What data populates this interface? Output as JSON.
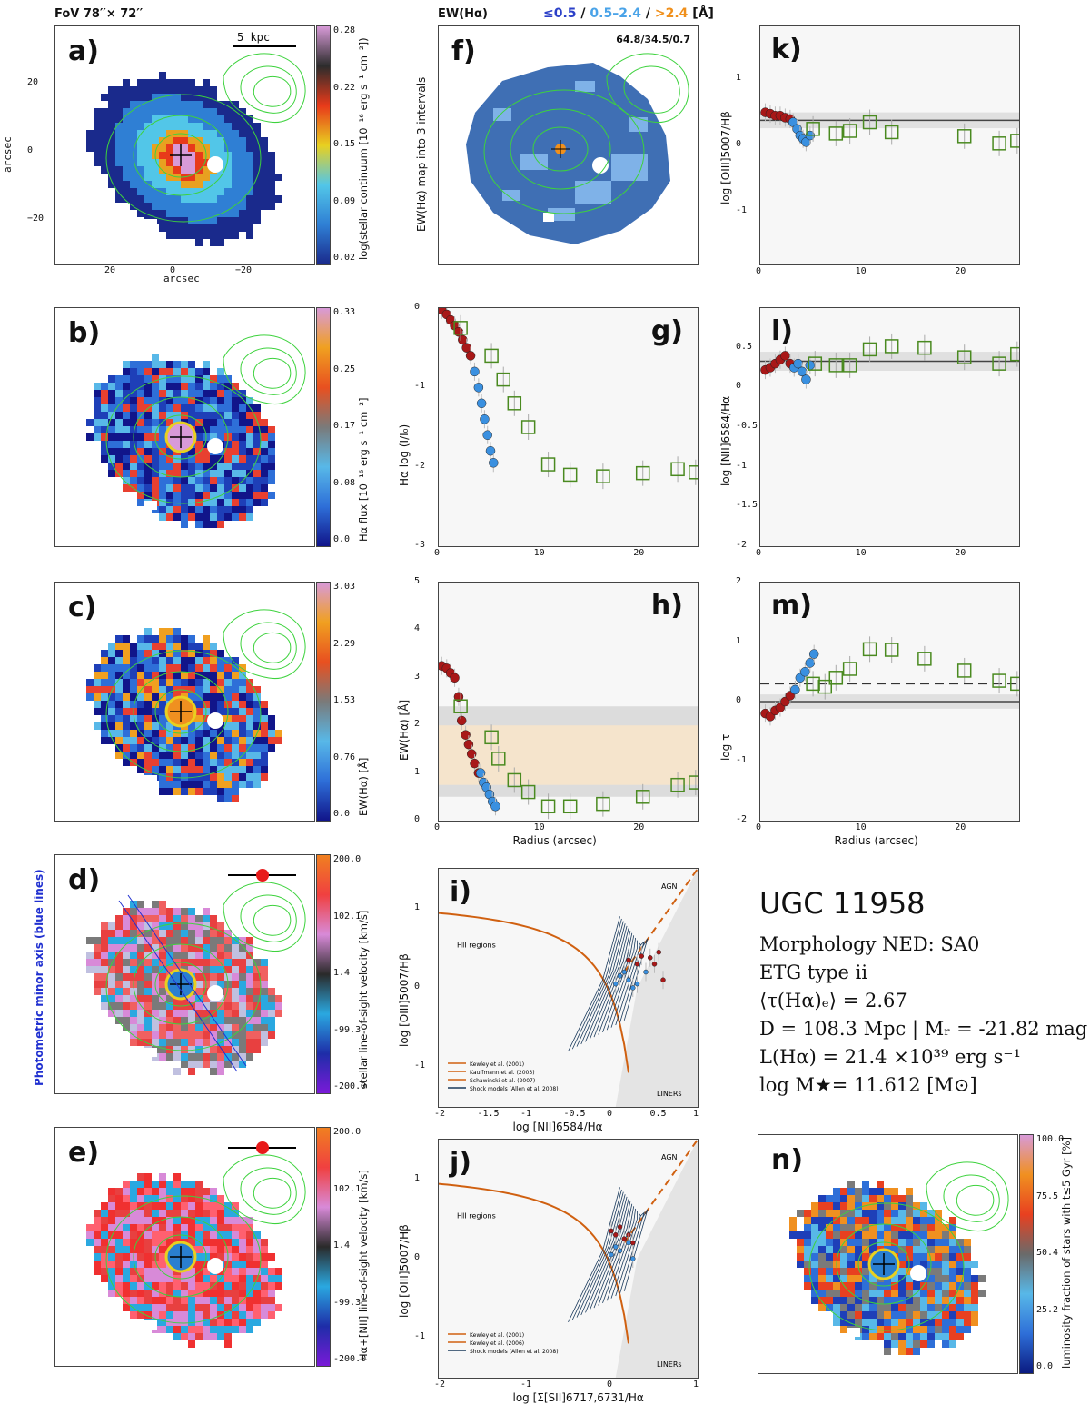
{
  "header": {
    "fov": "FoV 78′′× 72′′",
    "ew_title": "EW(Hα)",
    "ew_bins": [
      "≤0.5",
      "0.5–2.4",
      ">2.4"
    ],
    "ew_sep": "/",
    "ew_unit": "[Å]",
    "colors": {
      "low": "#2b40c8",
      "mid": "#4aa3e8",
      "high": "#f0901c"
    }
  },
  "panels": {
    "a": {
      "label": "a)",
      "scalebar": "5 kpc",
      "cbar_label": "log(stellar continuum [10⁻¹⁶ erg s⁻¹ cm⁻²])",
      "cbar_ticks": [
        "0.28",
        "0.22",
        "0.15",
        "0.09",
        "0.02"
      ],
      "xlabel": "arcsec",
      "ylabel": "arcsec",
      "xticks": [
        "20",
        "0",
        "−20"
      ],
      "yticks": [
        "20",
        "0",
        "−20"
      ]
    },
    "b": {
      "label": "b)",
      "cbar_label": "Hα flux [10⁻¹⁶ erg s⁻¹ cm⁻²]",
      "cbar_ticks": [
        "0.33",
        "0.25",
        "0.17",
        "0.08",
        "0.0"
      ]
    },
    "c": {
      "label": "c)",
      "cbar_label": "EW(Hα) [Å]",
      "cbar_ticks": [
        "3.03",
        "2.29",
        "1.53",
        "0.76",
        "0.0"
      ]
    },
    "d": {
      "label": "d)",
      "side_label": "Photometric minor axis (blue lines)",
      "cbar_label": "stellar line-of-sight velocity [km/s]",
      "cbar_ticks": [
        "200.0",
        "102.1",
        "1.4",
        "-99.3",
        "-200.0"
      ]
    },
    "e": {
      "label": "e)",
      "cbar_label": "Hα+[NII] line-of-sight velocity [km/s]",
      "cbar_ticks": [
        "200.0",
        "102.1",
        "1.4",
        "-99.3",
        "-200.0"
      ]
    },
    "f": {
      "label": "f)",
      "ylabel": "EW(Hα) map into 3 intervals",
      "percent": "64.8/34.5/0.7"
    },
    "n": {
      "label": "n)",
      "cbar_label": "luminosity fraction of stars with t≤5 Gyr [%]",
      "cbar_ticks": [
        "100.0",
        "75.5",
        "50.4",
        "25.2",
        "0.0"
      ]
    }
  },
  "info": {
    "name": "UGC 11958",
    "morph": "Morphology NED: SA0",
    "etg": "ETG type ii",
    "tau": "⟨τ(Hα)ₑ⟩ = 2.67",
    "dist": "D = 108.3 Mpc | Mᵣ = -21.82 mag",
    "lha": "L(Hα) = 21.4 ×10³⁹ erg s⁻¹",
    "mass": "log M★= 11.612 [M⊙]"
  },
  "chart_data": [
    {
      "id": "g",
      "type": "scatter",
      "label": "g)",
      "ylabel": "Hα log (I/I₀)",
      "xlabel": "",
      "xlim": [
        0,
        26
      ],
      "ylim": [
        -3,
        0
      ],
      "xticks": [
        0,
        10,
        20
      ],
      "yticks": [
        0,
        -1,
        -2,
        -3
      ],
      "series": [
        {
          "name": "red",
          "x": [
            0.3,
            0.8,
            1.2,
            1.6,
            2.0,
            2.4,
            2.8,
            3.2
          ],
          "y": [
            -0.02,
            -0.08,
            -0.15,
            -0.22,
            -0.3,
            -0.4,
            -0.5,
            -0.6
          ]
        },
        {
          "name": "blue",
          "x": [
            3.6,
            4.0,
            4.3,
            4.6,
            4.9,
            5.2,
            5.5
          ],
          "y": [
            -0.8,
            -1.0,
            -1.2,
            -1.4,
            -1.6,
            -1.8,
            -1.95
          ]
        },
        {
          "name": "squares",
          "x": [
            2.2,
            5.3,
            6.5,
            7.6,
            9.0,
            11.0,
            13.2,
            16.5,
            20.5,
            24.0,
            25.8
          ],
          "y": [
            -0.25,
            -0.6,
            -0.9,
            -1.2,
            -1.5,
            -1.97,
            -2.1,
            -2.12,
            -2.08,
            -2.03,
            -2.07
          ]
        }
      ]
    },
    {
      "id": "h",
      "type": "scatter",
      "label": "h)",
      "ylabel": "EW(Hα) [Å]",
      "xlabel": "Radius (arcsec)",
      "xlim": [
        0,
        26
      ],
      "ylim": [
        0,
        5
      ],
      "xticks": [
        0,
        10,
        20
      ],
      "yticks": [
        0,
        1,
        2,
        3,
        4,
        5
      ],
      "bands": [
        [
          0.5,
          2.4
        ],
        [
          0.75,
          2.0
        ]
      ],
      "series": [
        {
          "name": "red",
          "x": [
            0.3,
            0.8,
            1.2,
            1.6,
            2.0,
            2.3,
            2.7,
            3.0,
            3.3,
            3.6,
            4.0
          ],
          "y": [
            3.25,
            3.2,
            3.1,
            3.0,
            2.6,
            2.1,
            1.8,
            1.6,
            1.4,
            1.2,
            1.0
          ]
        },
        {
          "name": "blue",
          "x": [
            4.2,
            4.5,
            4.8,
            5.1,
            5.4,
            5.7
          ],
          "y": [
            1.0,
            0.8,
            0.7,
            0.55,
            0.4,
            0.3
          ]
        },
        {
          "name": "squares",
          "x": [
            2.2,
            5.3,
            6.0,
            7.6,
            9.0,
            11.0,
            13.2,
            16.5,
            20.5,
            24.0,
            25.8
          ],
          "y": [
            2.4,
            1.75,
            1.3,
            0.85,
            0.6,
            0.3,
            0.3,
            0.35,
            0.5,
            0.75,
            0.8
          ]
        }
      ]
    },
    {
      "id": "k",
      "type": "scatter",
      "label": "k)",
      "ylabel": "log [OIII]5007/Hβ",
      "xlabel": "",
      "xlim": [
        0,
        26
      ],
      "ylim": [
        -1.8,
        1.8
      ],
      "xticks": [
        0,
        10,
        20
      ],
      "yticks": [
        1,
        0,
        -1
      ],
      "hline": 0.38,
      "series": [
        {
          "name": "red",
          "x": [
            0.5,
            1.0,
            1.5,
            2.0,
            2.5,
            3.0
          ],
          "y": [
            0.5,
            0.48,
            0.45,
            0.45,
            0.42,
            0.4
          ]
        },
        {
          "name": "blue",
          "x": [
            3.3,
            3.7,
            4.0,
            4.3,
            4.6,
            5.0
          ],
          "y": [
            0.35,
            0.25,
            0.15,
            0.1,
            0.05,
            0.15
          ]
        },
        {
          "name": "squares",
          "x": [
            5.3,
            7.6,
            9.0,
            11.0,
            13.2,
            20.5,
            24.0,
            25.8
          ],
          "y": [
            0.25,
            0.18,
            0.22,
            0.35,
            0.2,
            0.14,
            0.03,
            0.07
          ]
        }
      ]
    },
    {
      "id": "l",
      "type": "scatter",
      "label": "l)",
      "ylabel": "log [NII]6584/Hα",
      "xlabel": "",
      "xlim": [
        0,
        26
      ],
      "ylim": [
        -2,
        1
      ],
      "xticks": [
        0,
        10,
        20
      ],
      "yticks": [
        0.5,
        0,
        -0.5,
        -1,
        -1.5,
        -2
      ],
      "hline": 0.33,
      "series": [
        {
          "name": "red",
          "x": [
            0.5,
            1.0,
            1.5,
            2.0,
            2.5,
            3.0
          ],
          "y": [
            0.22,
            0.25,
            0.3,
            0.35,
            0.4,
            0.3
          ]
        },
        {
          "name": "blue",
          "x": [
            3.4,
            3.8,
            4.2,
            4.6,
            5.0
          ],
          "y": [
            0.25,
            0.3,
            0.2,
            0.1,
            0.28
          ]
        },
        {
          "name": "squares",
          "x": [
            5.5,
            7.6,
            9.0,
            11.0,
            13.2,
            16.5,
            20.5,
            24.0,
            25.8
          ],
          "y": [
            0.3,
            0.28,
            0.28,
            0.48,
            0.52,
            0.5,
            0.38,
            0.3,
            0.42
          ]
        }
      ]
    },
    {
      "id": "m",
      "type": "scatter",
      "label": "m)",
      "ylabel": "log τ",
      "xlabel": "Radius (arcsec)",
      "xlim": [
        0,
        26
      ],
      "ylim": [
        -2,
        2
      ],
      "xticks": [
        0,
        10,
        20
      ],
      "yticks": [
        2,
        1,
        0,
        -1,
        -2
      ],
      "hline": 0.0,
      "dashline": 0.3,
      "series": [
        {
          "name": "red",
          "x": [
            0.5,
            1.0,
            1.5,
            2.0,
            2.5,
            3.0
          ],
          "y": [
            -0.2,
            -0.25,
            -0.15,
            -0.1,
            0.0,
            0.1
          ]
        },
        {
          "name": "blue",
          "x": [
            3.5,
            4.0,
            4.5,
            5.0,
            5.4
          ],
          "y": [
            0.2,
            0.4,
            0.5,
            0.65,
            0.8
          ]
        },
        {
          "name": "squares",
          "x": [
            5.3,
            6.5,
            7.6,
            9.0,
            11.0,
            13.2,
            16.5,
            20.5,
            24.0,
            25.8
          ],
          "y": [
            0.3,
            0.25,
            0.4,
            0.55,
            0.88,
            0.87,
            0.72,
            0.52,
            0.35,
            0.3
          ]
        }
      ]
    },
    {
      "id": "i",
      "type": "scatter",
      "label": "i)",
      "ylabel": "log [OIII]5007/Hβ",
      "xlabel": "log [NII]6584/Hα",
      "xlim": [
        -2,
        1
      ],
      "ylim": [
        -1.5,
        1.5
      ],
      "xticks": [
        "-2",
        "-1.5",
        "-1",
        "-0.5",
        "0",
        "0.5",
        "1"
      ],
      "yticks": [
        "1",
        "0",
        "-1"
      ],
      "region_labels": [
        "AGN",
        "HII regions",
        "LINERs"
      ],
      "legend": [
        "Kewley et al. (2001)",
        "Kauffmann et al. (2003)",
        "Schawinski et al. (2007)",
        "Shock models (Allen et al. 2008)"
      ],
      "series": [
        {
          "name": "red",
          "x": [
            0.2,
            0.3,
            0.35,
            0.45,
            0.5,
            0.55,
            0.6
          ],
          "y": [
            0.35,
            0.3,
            0.4,
            0.38,
            0.3,
            0.45,
            0.1
          ]
        },
        {
          "name": "blue",
          "x": [
            0.05,
            0.1,
            0.15,
            0.2,
            0.25,
            0.3,
            0.4
          ],
          "y": [
            0.05,
            0.15,
            0.2,
            0.1,
            0.0,
            0.05,
            0.2
          ]
        }
      ]
    },
    {
      "id": "j",
      "type": "scatter",
      "label": "j)",
      "ylabel": "log [OIII]5007/Hβ",
      "xlabel": "log [Σ[SII]6717,6731/Hα",
      "xlim": [
        -2,
        1
      ],
      "ylim": [
        -1.5,
        1.5
      ],
      "xticks": [
        "-2",
        "-1",
        "0",
        "1"
      ],
      "yticks": [
        "1",
        "0",
        "-1"
      ],
      "region_labels": [
        "AGN",
        "HII regions",
        "LINERs"
      ],
      "legend": [
        "Kewley et al. (2001)",
        "Kewley et al. (2006)",
        "Shock models (Allen et al. 2008)"
      ],
      "series": [
        {
          "name": "red",
          "x": [
            0.0,
            0.05,
            0.1,
            0.15,
            0.2,
            0.25
          ],
          "y": [
            0.35,
            0.3,
            0.4,
            0.25,
            0.3,
            0.2
          ]
        },
        {
          "name": "blue",
          "x": [
            0.0,
            0.05,
            0.1,
            0.2,
            0.25
          ],
          "y": [
            0.05,
            0.15,
            0.1,
            0.2,
            0.0
          ]
        }
      ]
    }
  ]
}
